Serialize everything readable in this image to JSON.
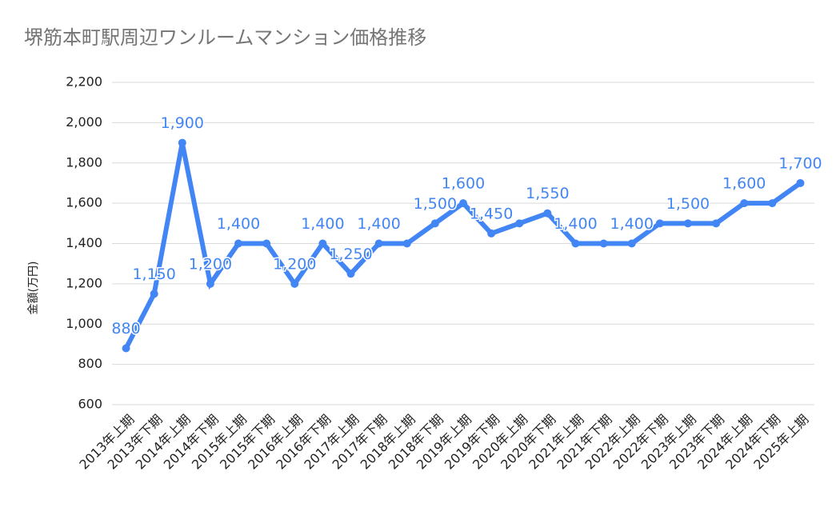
{
  "chart_data": {
    "type": "line",
    "title": "堺筋本町駅周辺ワンルームマンション価格推移",
    "y_label": "金額(万円)",
    "categories": [
      "2013年上期",
      "2013年下期",
      "2014年上期",
      "2014年下期",
      "2015年上期",
      "2015年下期",
      "2016年上期",
      "2016年下期",
      "2017年上期",
      "2017年下期",
      "2018年上期",
      "2018年下期",
      "2019年上期",
      "2019年下期",
      "2020年上期",
      "2020年下期",
      "2021年上期",
      "2021年下期",
      "2022年上期",
      "2022年下期",
      "2023年上期",
      "2023年下期",
      "2024年上期",
      "2024年下期",
      "2025年上期"
    ],
    "values": [
      880,
      1150,
      1900,
      1200,
      1400,
      1400,
      1200,
      1400,
      1250,
      1400,
      1400,
      1500,
      1600,
      1450,
      1500,
      1550,
      1400,
      1400,
      1400,
      1500,
      1500,
      1500,
      1600,
      1600,
      1700
    ],
    "value_labels": [
      "880",
      "1,150",
      "1,900",
      "1,200",
      "1,400",
      null,
      "1,200",
      "1,400",
      "1,250",
      "1,400",
      null,
      "1,500",
      "1,600",
      "1,450",
      null,
      "1,550",
      "1,400",
      null,
      "1,400",
      null,
      "1,500",
      null,
      "1,600",
      null,
      "1,700"
    ],
    "color": "#4285f4",
    "ylim": [
      600,
      2200
    ],
    "yticks": [
      600,
      800,
      {
        "value": 1000,
        "label": "1,000"
      },
      {
        "value": 1200,
        "label": "1,200"
      },
      {
        "value": 1400,
        "label": "1,400"
      },
      {
        "value": 1600,
        "label": "1,600"
      },
      {
        "value": 1800,
        "label": "1,800"
      },
      {
        "value": 2000,
        "label": "2,000"
      },
      {
        "value": 2200,
        "label": "2,200"
      }
    ],
    "grid": true
  }
}
